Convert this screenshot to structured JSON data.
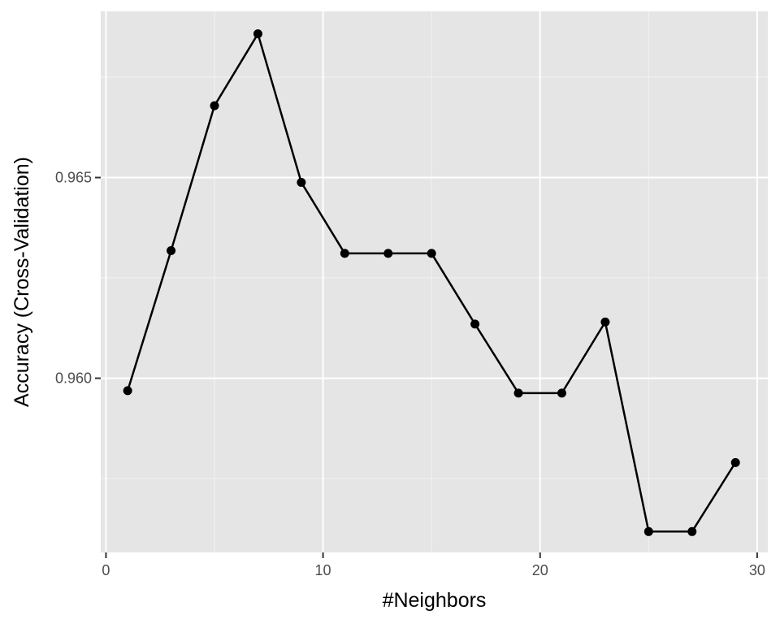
{
  "chart_data": {
    "type": "line",
    "title": "",
    "xlabel": "#Neighbors",
    "ylabel": "Accuracy (Cross-Validation)",
    "xlim": [
      -0.24,
      30.49
    ],
    "ylim": [
      0.95566,
      0.96914
    ],
    "x_ticks": [
      0,
      10,
      20,
      30
    ],
    "x_tick_labels": [
      "0",
      "10",
      "20",
      "30"
    ],
    "y_ticks": [
      0.96,
      0.965
    ],
    "y_tick_labels": [
      "0.960",
      "0.965"
    ],
    "grid": true,
    "legend": "none",
    "series": [
      {
        "x": [
          1,
          3,
          5,
          7,
          9,
          11,
          13,
          15,
          17,
          19,
          21,
          23,
          25,
          27,
          29
        ],
        "y": [
          0.95969,
          0.96318,
          0.96679,
          0.96858,
          0.96488,
          0.96311,
          0.96311,
          0.96311,
          0.96135,
          0.95963,
          0.95963,
          0.9614,
          0.95618,
          0.95618,
          0.9579
        ]
      }
    ],
    "colors": {
      "panel_background": "#e5e5e5",
      "grid_major": "#ffffff",
      "grid_minor": "#f2f2f2",
      "line": "#000000",
      "point": "#000000",
      "tick_mark": "#333333",
      "tick_label": "#4d4d4d"
    }
  }
}
